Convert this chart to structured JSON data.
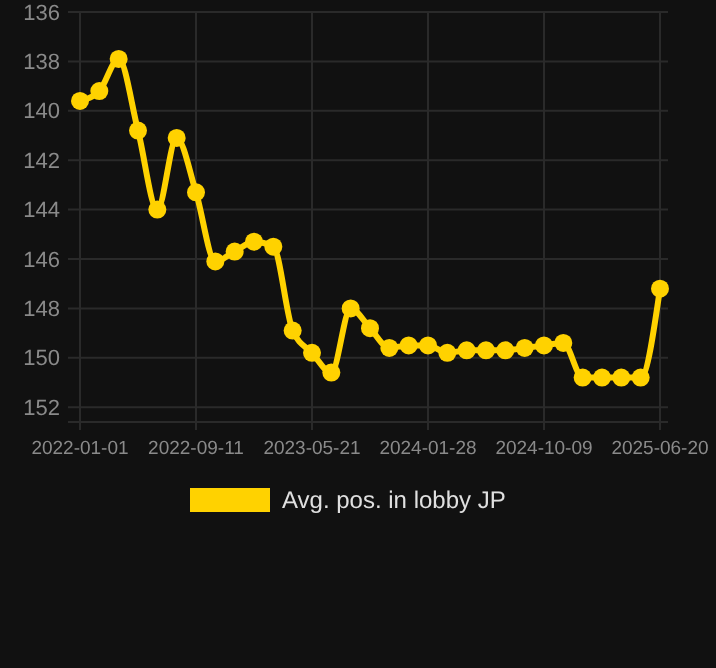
{
  "chart_data": {
    "type": "line",
    "categories": [
      "2022-01-01",
      null,
      null,
      null,
      null,
      null,
      "2022-09-11",
      null,
      null,
      null,
      null,
      null,
      "2023-05-21",
      null,
      null,
      null,
      null,
      null,
      "2024-01-28",
      null,
      null,
      null,
      null,
      null,
      "2024-10-09",
      null,
      null,
      null,
      null,
      null,
      "2025-06-20"
    ],
    "series": [
      {
        "name": "Avg. pos. in lobby JP",
        "color": "#ffd200",
        "values": [
          139.6,
          139.2,
          137.9,
          140.8,
          144.0,
          141.1,
          143.3,
          146.1,
          145.7,
          145.3,
          145.5,
          148.9,
          149.8,
          150.6,
          148.0,
          148.8,
          149.6,
          149.5,
          149.5,
          149.8,
          149.7,
          149.7,
          149.7,
          149.6,
          149.5,
          149.4,
          150.8,
          150.8,
          150.8,
          150.8,
          147.2
        ]
      }
    ],
    "ylim": [
      152.6,
      136
    ],
    "yticks": [
      136,
      138,
      140,
      142,
      144,
      146,
      148,
      150,
      152
    ],
    "grid": true,
    "legend": "bottom",
    "marker": "circle",
    "line_style": "solid"
  }
}
